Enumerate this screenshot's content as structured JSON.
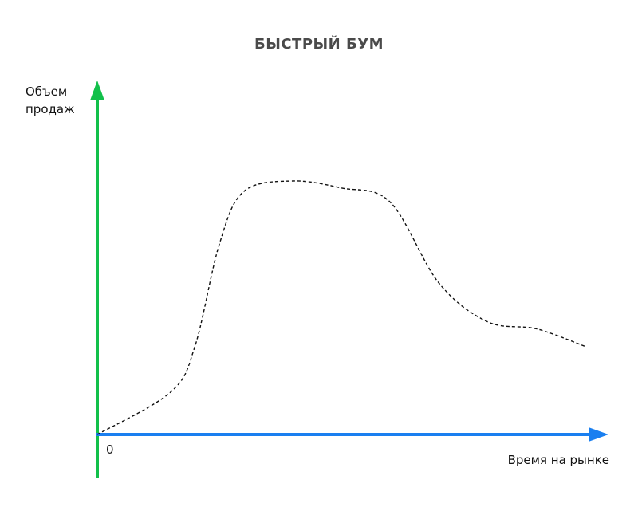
{
  "chart_data": {
    "type": "line",
    "title": "БЫСТРЫЙ БУМ",
    "ylabel": "Объем продаж",
    "xlabel": "Время на рынке",
    "origin_label": "0",
    "grid": false,
    "legend": "none",
    "xlim": [
      0,
      100
    ],
    "ylim": [
      0,
      100
    ],
    "series": [
      {
        "x": [
          0,
          15,
          20,
          25,
          30,
          40,
          50,
          60,
          70,
          80,
          90,
          100
        ],
        "y": [
          0,
          12,
          25,
          54,
          69,
          72,
          70,
          66,
          43,
          32,
          30,
          25
        ],
        "style": "dashed"
      }
    ],
    "colors": {
      "y_axis": "#12c04a",
      "x_axis": "#1a7ff0",
      "curve": "#111111",
      "title": "#4a4a4a"
    }
  }
}
